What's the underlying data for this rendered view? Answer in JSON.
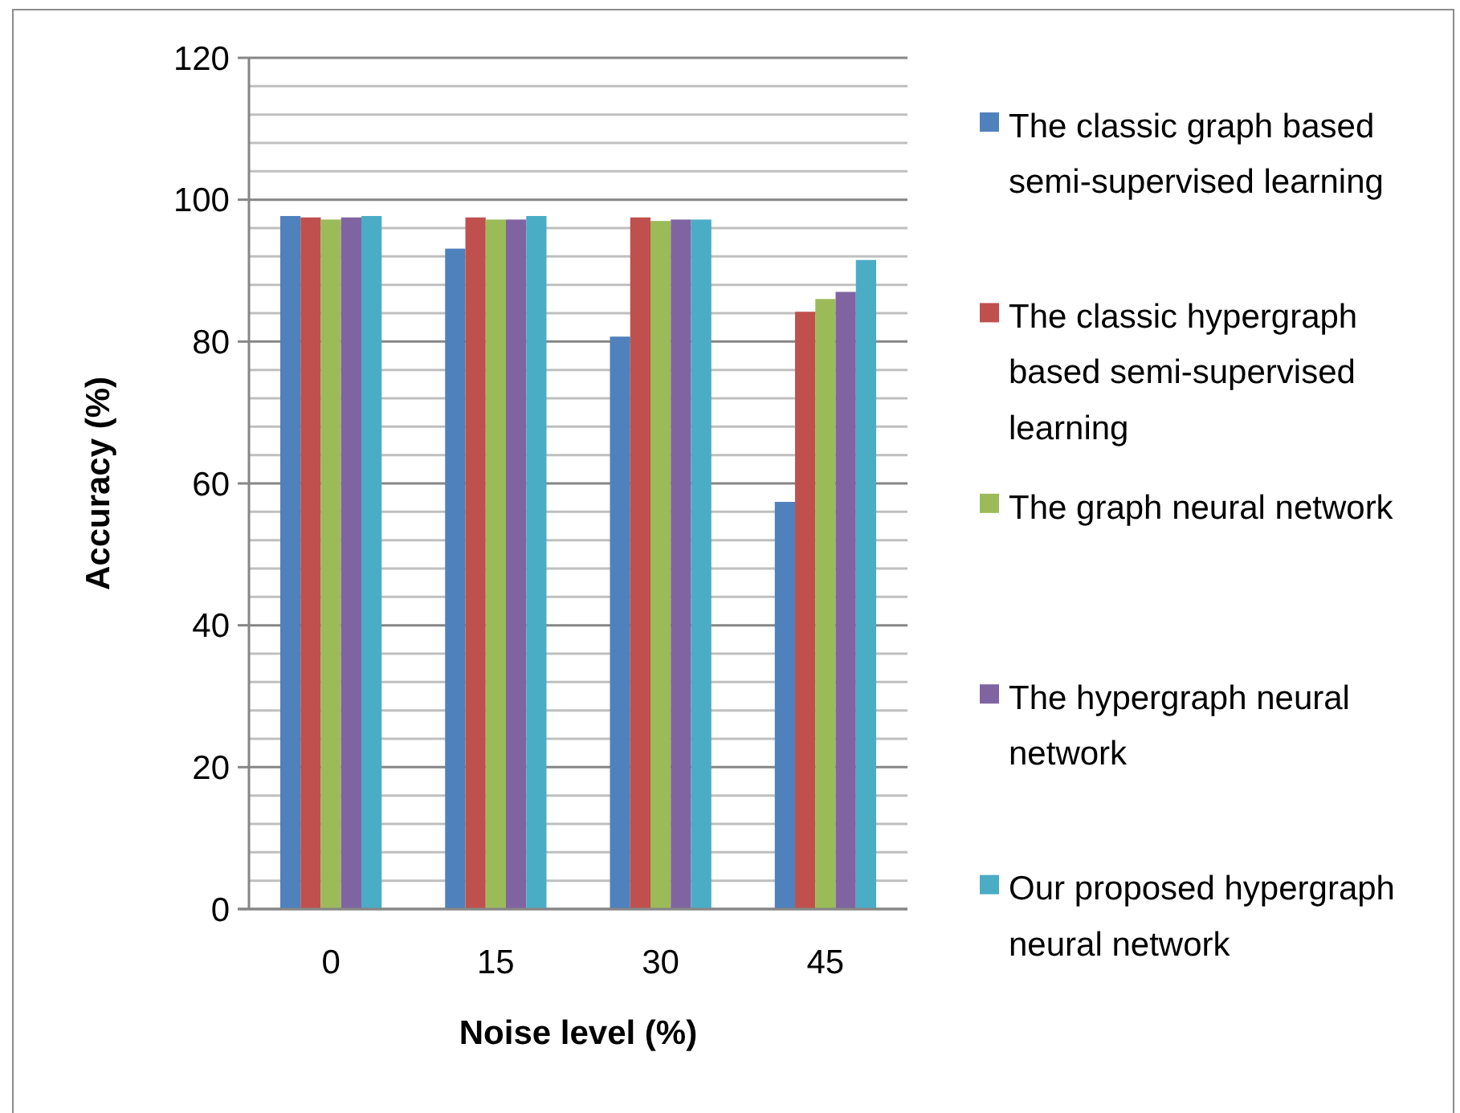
{
  "chart_data": {
    "type": "bar",
    "xlabel": "Noise level (%)",
    "ylabel": "Accuracy (%)",
    "categories": [
      "0",
      "15",
      "30",
      "45"
    ],
    "series": [
      {
        "name": "The classic graph based semi-supervised learning",
        "color": "#4f81bd",
        "values": [
          97.7,
          93.1,
          80.7,
          57.4
        ]
      },
      {
        "name": "The classic hypergraph based semi-supervised learning",
        "color": "#c0504d",
        "values": [
          97.5,
          97.5,
          97.5,
          84.2
        ]
      },
      {
        "name": "The graph neural network",
        "color": "#9bbb59",
        "values": [
          97.2,
          97.2,
          97.0,
          86.0
        ]
      },
      {
        "name": "The hypergraph neural network",
        "color": "#8064a2",
        "values": [
          97.5,
          97.2,
          97.2,
          87.0
        ]
      },
      {
        "name": "Our proposed hypergraph neural network",
        "color": "#4bacc6",
        "values": [
          97.7,
          97.7,
          97.2,
          91.5
        ]
      }
    ],
    "ylim": [
      0,
      120
    ],
    "yticks": [
      0,
      {
        "value": 4,
        "label": null
      },
      {
        "value": 8,
        "label": null
      },
      {
        "value": 12,
        "label": null
      },
      {
        "value": 16,
        "label": null
      },
      20,
      {
        "value": 24,
        "label": null
      },
      {
        "value": 28,
        "label": null
      },
      {
        "value": 32,
        "label": null
      },
      {
        "value": 36,
        "label": null
      },
      40,
      {
        "value": 44,
        "label": null
      },
      {
        "value": 48,
        "label": null
      },
      {
        "value": 52,
        "label": null
      },
      {
        "value": 56,
        "label": null
      },
      60,
      {
        "value": 64,
        "label": null
      },
      {
        "value": 68,
        "label": null
      },
      {
        "value": 72,
        "label": null
      },
      {
        "value": 76,
        "label": null
      },
      80,
      {
        "value": 84,
        "label": null
      },
      {
        "value": 88,
        "label": null
      },
      {
        "value": 92,
        "label": null
      },
      {
        "value": 96,
        "label": null
      },
      100,
      {
        "value": 104,
        "label": null
      },
      {
        "value": 108,
        "label": null
      },
      {
        "value": 112,
        "label": null
      },
      {
        "value": 116,
        "label": null
      },
      120
    ],
    "grid": "y",
    "legend": "right"
  }
}
